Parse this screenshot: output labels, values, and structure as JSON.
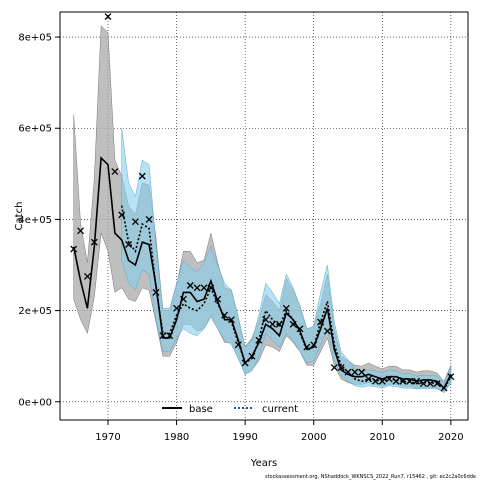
{
  "chart_data": {
    "type": "line",
    "title": "",
    "xlabel": "Years",
    "ylabel": "Catch",
    "xlim": [
      1963,
      2022.5
    ],
    "ylim": [
      -40000,
      855000
    ],
    "x_ticks": [
      1970,
      1980,
      1990,
      2000,
      2010,
      2020
    ],
    "x_tick_labels": [
      "1970",
      "1980",
      "1990",
      "2000",
      "2010",
      "2020"
    ],
    "y_ticks": [
      0,
      200000,
      400000,
      600000,
      800000
    ],
    "y_tick_labels": [
      "0e+00",
      "2e+05",
      "4e+05",
      "6e+05",
      "8e+05"
    ],
    "grid": true,
    "legend_position": "bottom",
    "footer": "stockassessment.org, NShaddock_WKNSCS_2022_Run7, r15462 , git: ec2c2a0c6dde",
    "colors": {
      "base_band": "#aaaaaa",
      "current_band": "#87ceeb",
      "current_line": "#1a5f80",
      "line": "#000000"
    },
    "series": [
      {
        "name": "base",
        "style": "solid",
        "x": [
          1965,
          1966,
          1967,
          1968,
          1969,
          1970,
          1971,
          1972,
          1973,
          1974,
          1975,
          1976,
          1977,
          1978,
          1979,
          1980,
          1981,
          1982,
          1983,
          1984,
          1985,
          1986,
          1987,
          1988,
          1989,
          1990,
          1991,
          1992,
          1993,
          1994,
          1995,
          1996,
          1997,
          1998,
          1999,
          2000,
          2001,
          2002,
          2003,
          2004,
          2005,
          2006,
          2007,
          2008,
          2009,
          2010,
          2011,
          2012,
          2013,
          2014,
          2015,
          2016,
          2017,
          2018,
          2019,
          2020
        ],
        "values": [
          340000,
          265000,
          205000,
          340000,
          535000,
          520000,
          370000,
          355000,
          310000,
          300000,
          350000,
          345000,
          255000,
          140000,
          140000,
          180000,
          240000,
          240000,
          220000,
          225000,
          265000,
          220000,
          180000,
          180000,
          135000,
          85000,
          100000,
          130000,
          170000,
          160000,
          145000,
          195000,
          180000,
          155000,
          115000,
          120000,
          160000,
          205000,
          115000,
          70000,
          60000,
          55000,
          55000,
          60000,
          55000,
          50000,
          55000,
          55000,
          50000,
          50000,
          45000,
          48000,
          48000,
          45000,
          30000,
          60000
        ],
        "lower": [
          225000,
          180000,
          150000,
          230000,
          370000,
          330000,
          240000,
          250000,
          225000,
          220000,
          250000,
          245000,
          175000,
          100000,
          100000,
          130000,
          170000,
          170000,
          155000,
          160000,
          190000,
          160000,
          130000,
          130000,
          95000,
          60000,
          70000,
          90000,
          125000,
          120000,
          110000,
          145000,
          130000,
          110000,
          80000,
          80000,
          110000,
          140000,
          80000,
          50000,
          42000,
          38000,
          38000,
          42000,
          38000,
          34000,
          38000,
          38000,
          34000,
          34000,
          30000,
          32000,
          32000,
          30000,
          20000,
          45000
        ],
        "upper": [
          630000,
          390000,
          305000,
          490000,
          825000,
          810000,
          530000,
          495000,
          430000,
          410000,
          480000,
          475000,
          360000,
          200000,
          200000,
          255000,
          330000,
          330000,
          305000,
          310000,
          370000,
          305000,
          250000,
          245000,
          185000,
          120000,
          140000,
          180000,
          235000,
          220000,
          200000,
          270000,
          245000,
          210000,
          160000,
          165000,
          215000,
          280000,
          160000,
          100000,
          90000,
          80000,
          78000,
          85000,
          78000,
          72000,
          78000,
          78000,
          70000,
          70000,
          65000,
          68000,
          68000,
          63000,
          45000,
          80000
        ]
      },
      {
        "name": "current",
        "style": "dotted",
        "x": [
          1972,
          1973,
          1974,
          1975,
          1976,
          1977,
          1978,
          1979,
          1980,
          1981,
          1982,
          1983,
          1984,
          1985,
          1986,
          1987,
          1988,
          1989,
          1990,
          1991,
          1992,
          1993,
          1994,
          1995,
          1996,
          1997,
          1998,
          1999,
          2000,
          2001,
          2002,
          2003,
          2004,
          2005,
          2006,
          2007,
          2008,
          2009,
          2010,
          2011,
          2012,
          2013,
          2014,
          2015,
          2016,
          2017,
          2018,
          2019,
          2020
        ],
        "values": [
          430000,
          350000,
          330000,
          390000,
          380000,
          250000,
          150000,
          150000,
          190000,
          215000,
          205000,
          200000,
          215000,
          250000,
          215000,
          185000,
          175000,
          130000,
          85000,
          95000,
          135000,
          200000,
          180000,
          165000,
          200000,
          180000,
          150000,
          115000,
          120000,
          175000,
          220000,
          125000,
          80000,
          65000,
          50000,
          45000,
          50000,
          48000,
          45000,
          50000,
          48000,
          44000,
          44000,
          40000,
          42000,
          42000,
          40000,
          28000,
          55000
        ],
        "lower": [
          310000,
          260000,
          245000,
          290000,
          280000,
          180000,
          110000,
          110000,
          140000,
          160000,
          150000,
          145000,
          160000,
          185000,
          160000,
          135000,
          125000,
          95000,
          60000,
          68000,
          100000,
          150000,
          135000,
          120000,
          150000,
          135000,
          110000,
          85000,
          90000,
          125000,
          160000,
          90000,
          58000,
          45000,
          35000,
          32000,
          35000,
          33000,
          30000,
          35000,
          33000,
          30000,
          30000,
          28000,
          29000,
          29000,
          28000,
          20000,
          40000
        ],
        "upper": [
          600000,
          480000,
          450000,
          530000,
          520000,
          345000,
          205000,
          205000,
          260000,
          310000,
          295000,
          285000,
          305000,
          340000,
          300000,
          260000,
          245000,
          185000,
          120000,
          135000,
          190000,
          260000,
          240000,
          215000,
          280000,
          250000,
          210000,
          160000,
          165000,
          240000,
          300000,
          175000,
          110000,
          92000,
          72000,
          65000,
          70000,
          68000,
          64000,
          70000,
          68000,
          62000,
          62000,
          56000,
          58000,
          58000,
          56000,
          40000,
          75000
        ]
      },
      {
        "name": "observed",
        "style": "markers",
        "x": [
          1965,
          1966,
          1967,
          1968,
          1970,
          1971,
          1972,
          1973,
          1974,
          1975,
          1976,
          1977,
          1978,
          1979,
          1980,
          1981,
          1982,
          1983,
          1984,
          1985,
          1986,
          1987,
          1988,
          1989,
          1990,
          1991,
          1992,
          1993,
          1994,
          1995,
          1996,
          1997,
          1998,
          1999,
          2000,
          2001,
          2002,
          2003,
          2004,
          2005,
          2006,
          2007,
          2008,
          2009,
          2010,
          2011,
          2012,
          2013,
          2014,
          2015,
          2016,
          2017,
          2018,
          2019,
          2020
        ],
        "values": [
          335000,
          375000,
          275000,
          350000,
          845000,
          505000,
          410000,
          345000,
          395000,
          495000,
          400000,
          240000,
          145000,
          145000,
          205000,
          225000,
          255000,
          250000,
          250000,
          250000,
          225000,
          190000,
          180000,
          125000,
          85000,
          100000,
          135000,
          180000,
          170000,
          170000,
          205000,
          170000,
          160000,
          120000,
          125000,
          175000,
          155000,
          75000,
          75000,
          65000,
          65000,
          65000,
          50000,
          45000,
          45000,
          50000,
          45000,
          45000,
          45000,
          45000,
          40000,
          40000,
          40000,
          30000,
          55000
        ]
      }
    ]
  }
}
